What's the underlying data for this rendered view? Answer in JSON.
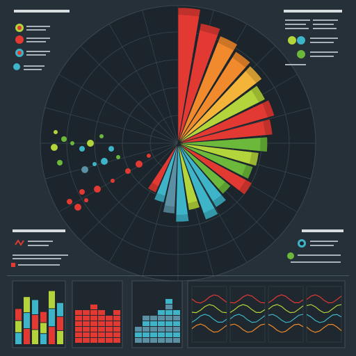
{
  "colors": {
    "background": "#263038",
    "radar_bg": "#1c252c",
    "red": "#e23a33",
    "orange": "#f08a2c",
    "yellow_orange": "#f4b43a",
    "yellow_green": "#b3d43a",
    "green": "#6cb83a",
    "cyan": "#3db4c8",
    "blue_grey": "#5b8fa3"
  },
  "chart_data": [
    {
      "type": "radial-bar",
      "title": "",
      "wedges": [
        {
          "color": "red",
          "value": 1.0
        },
        {
          "color": "red",
          "value": 0.9
        },
        {
          "color": "orange",
          "value": 0.85
        },
        {
          "color": "orange",
          "value": 0.8
        },
        {
          "color": "yellow_orange",
          "value": 0.78
        },
        {
          "color": "yellow_green",
          "value": 0.72
        },
        {
          "color": "red",
          "value": 0.74
        },
        {
          "color": "red",
          "value": 0.7
        },
        {
          "color": "green",
          "value": 0.66
        },
        {
          "color": "yellow_green",
          "value": 0.6
        },
        {
          "color": "green",
          "value": 0.58
        },
        {
          "color": "red",
          "value": 0.62
        },
        {
          "color": "green",
          "value": 0.5
        },
        {
          "color": "cyan",
          "value": 0.55
        },
        {
          "color": "cyan",
          "value": 0.6
        },
        {
          "color": "yellow_green",
          "value": 0.5
        },
        {
          "color": "cyan",
          "value": 0.58
        },
        {
          "color": "blue_grey",
          "value": 0.52
        },
        {
          "color": "cyan",
          "value": 0.45
        },
        {
          "color": "red",
          "value": 0.4
        }
      ]
    },
    {
      "type": "bar",
      "title": "",
      "series_colors": [
        "red",
        "yellow_green",
        "cyan"
      ],
      "values": [
        0.6,
        0.8,
        0.75,
        0.55,
        0.9,
        0.7
      ]
    },
    {
      "type": "bar",
      "title": "",
      "series_colors": [
        "red"
      ],
      "values": [
        0.55,
        0.6,
        0.62,
        0.55,
        0.5,
        0.58
      ]
    },
    {
      "type": "bar",
      "title": "",
      "series_colors": [
        "cyan"
      ],
      "values": [
        0.3,
        0.45,
        0.5,
        0.6,
        0.7,
        0.55
      ]
    },
    {
      "type": "line",
      "title": "",
      "series_colors": [
        "red",
        "yellow_green",
        "cyan",
        "orange"
      ]
    }
  ],
  "legends": {
    "top_left_items": [
      "",
      "",
      "",
      ""
    ],
    "top_right_items": [
      "",
      "",
      ""
    ],
    "mid_left_items": [
      "",
      ""
    ],
    "mid_right_items": [
      "",
      ""
    ]
  }
}
